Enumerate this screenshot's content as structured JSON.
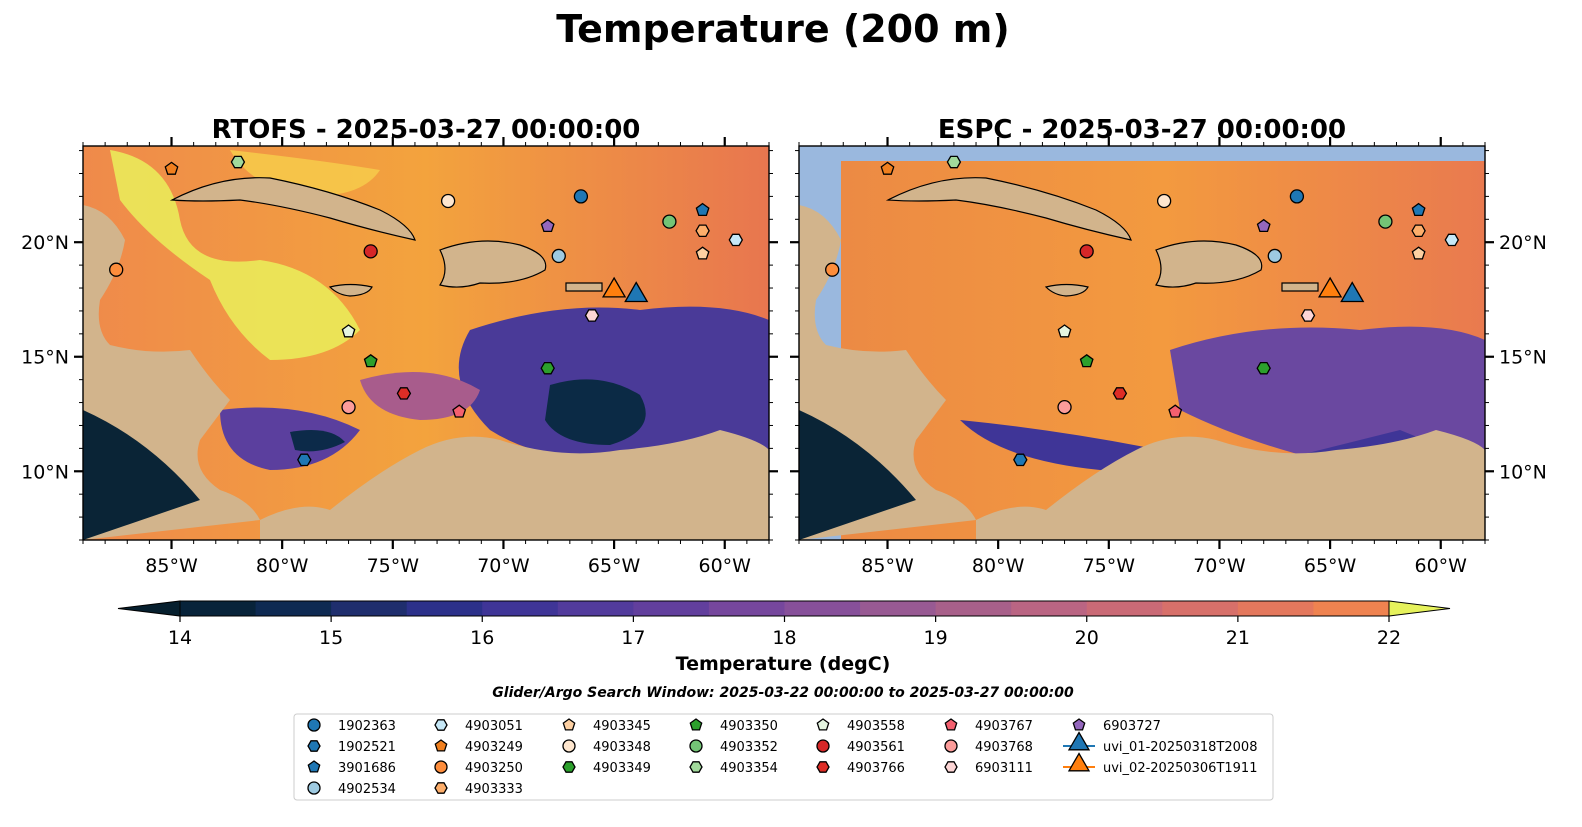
{
  "figure": {
    "title": "Temperature (200 m)",
    "search_window": "Glider/Argo Search Window: 2025-03-22 00:00:00 to 2025-03-27 00:00:00"
  },
  "chart_data": [
    {
      "type": "heatmap",
      "title": "RTOFS - 2025-03-27 00:00:00",
      "xlim": [
        -89,
        -58
      ],
      "ylim": [
        7,
        24.2
      ],
      "x_ticks": [
        "85°W",
        "80°W",
        "75°W",
        "70°W",
        "65°W",
        "60°W"
      ],
      "y_ticks": [
        "20°N",
        "15°N",
        "10°N"
      ],
      "y_tick_side": "left",
      "field": "Temperature at 200 m (degC)",
      "field_range": [
        14,
        22
      ]
    },
    {
      "type": "heatmap",
      "title": "ESPC - 2025-03-27 00:00:00",
      "xlim": [
        -89,
        -58
      ],
      "ylim": [
        7,
        24.2
      ],
      "x_ticks": [
        "85°W",
        "80°W",
        "75°W",
        "70°W",
        "65°W",
        "60°W"
      ],
      "y_ticks": [
        "20°N",
        "15°N",
        "10°N"
      ],
      "y_tick_side": "right",
      "field": "Temperature at 200 m (degC)",
      "field_range": [
        14,
        22
      ]
    }
  ],
  "colorbar": {
    "label": "Temperature (degC)",
    "min": 14,
    "max": 22,
    "step": 0.5,
    "ticks": [
      "14",
      "15",
      "16",
      "17",
      "18",
      "19",
      "20",
      "21",
      "22"
    ],
    "colors": [
      "#08233a",
      "#0e2a52",
      "#1f2e6d",
      "#2c318a",
      "#3f3597",
      "#523b9c",
      "#623f9d",
      "#76479d",
      "#87509a",
      "#985a93",
      "#a8608a",
      "#ba6583",
      "#ca6a76",
      "#d7706a",
      "#e4785d",
      "#ef8350",
      "#f58f44",
      "#f89c3d",
      "#fbab3c",
      "#f9bd42",
      "#f1d24d"
    ],
    "under_color": "#061f2e",
    "over_color": "#e6f25c"
  },
  "platforms": [
    {
      "id": "1902363",
      "color": "#1f77b4",
      "marker": "circle",
      "lon": -66.5,
      "lat": 22.0
    },
    {
      "id": "1902521",
      "color": "#1f77b4",
      "marker": "hexagon",
      "lon": -79.0,
      "lat": 10.5
    },
    {
      "id": "3901686",
      "color": "#1f77b4",
      "marker": "pentagon",
      "lon": -61.0,
      "lat": 21.4
    },
    {
      "id": "4902534",
      "color": "#9ecae1",
      "marker": "circle",
      "lon": -67.5,
      "lat": 19.4
    },
    {
      "id": "4903051",
      "color": "#c6e8f7",
      "marker": "hexagon",
      "lon": -59.5,
      "lat": 20.1
    },
    {
      "id": "4903249",
      "color": "#f07f1e",
      "marker": "pentagon",
      "lon": -85.0,
      "lat": 23.2
    },
    {
      "id": "4903250",
      "color": "#fd8d3c",
      "marker": "circle",
      "lon": -87.5,
      "lat": 18.8
    },
    {
      "id": "4903333",
      "color": "#fdae6b",
      "marker": "hexagon",
      "lon": -61.0,
      "lat": 20.5
    },
    {
      "id": "4903345",
      "color": "#fdd0a2",
      "marker": "pentagon",
      "lon": -61.0,
      "lat": 19.5
    },
    {
      "id": "4903348",
      "color": "#fee6ce",
      "marker": "circle",
      "lon": -72.5,
      "lat": 21.8
    },
    {
      "id": "4903349",
      "color": "#2ca02c",
      "marker": "hexagon",
      "lon": -68.0,
      "lat": 14.5
    },
    {
      "id": "4903350",
      "color": "#2ca02c",
      "marker": "pentagon",
      "lon": -76.0,
      "lat": 14.8
    },
    {
      "id": "4903352",
      "color": "#74c476",
      "marker": "circle",
      "lon": -62.5,
      "lat": 20.9
    },
    {
      "id": "4903354",
      "color": "#a1d99b",
      "marker": "hexagon",
      "lon": -82.0,
      "lat": 23.5
    },
    {
      "id": "4903558",
      "color": "#e5f5e0",
      "marker": "pentagon",
      "lon": -77.0,
      "lat": 16.1
    },
    {
      "id": "4903561",
      "color": "#d62728",
      "marker": "circle",
      "lon": -76.0,
      "lat": 19.6
    },
    {
      "id": "4903766",
      "color": "#de2d26",
      "marker": "hexagon",
      "lon": -74.5,
      "lat": 13.4
    },
    {
      "id": "4903767",
      "color": "#f4606f",
      "marker": "pentagon",
      "lon": -72.0,
      "lat": 12.6
    },
    {
      "id": "4903768",
      "color": "#fc9c9a",
      "marker": "circle",
      "lon": -77.0,
      "lat": 12.8
    },
    {
      "id": "6903111",
      "color": "#fcd5d5",
      "marker": "hexagon",
      "lon": -66.0,
      "lat": 16.8
    },
    {
      "id": "6903727",
      "color": "#9467bd",
      "marker": "pentagon",
      "lon": -68.0,
      "lat": 20.7
    }
  ],
  "gliders": [
    {
      "id": "uvi_01-20250318T2008",
      "color": "#1f77b4",
      "marker": "triangle",
      "lon": -64.0,
      "lat": 17.6
    },
    {
      "id": "uvi_02-20250306T1911",
      "color": "#ff7f0e",
      "marker": "triangle",
      "lon": -65.0,
      "lat": 17.8
    }
  ]
}
